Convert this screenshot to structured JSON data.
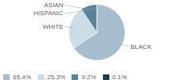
{
  "chart_data": {
    "type": "pie",
    "categories": [
      "BLACK",
      "WHITE",
      "ASIAN",
      "HISPANIC"
    ],
    "values": [
      65.4,
      25.3,
      9.2,
      0.1
    ],
    "value_labels": [
      "65.4%",
      "25.3%",
      "9.2%",
      "0.1%"
    ],
    "colors": [
      "#a8bece",
      "#ccdde8",
      "#5b849a",
      "#1e3f52"
    ],
    "legend": "lower left"
  }
}
